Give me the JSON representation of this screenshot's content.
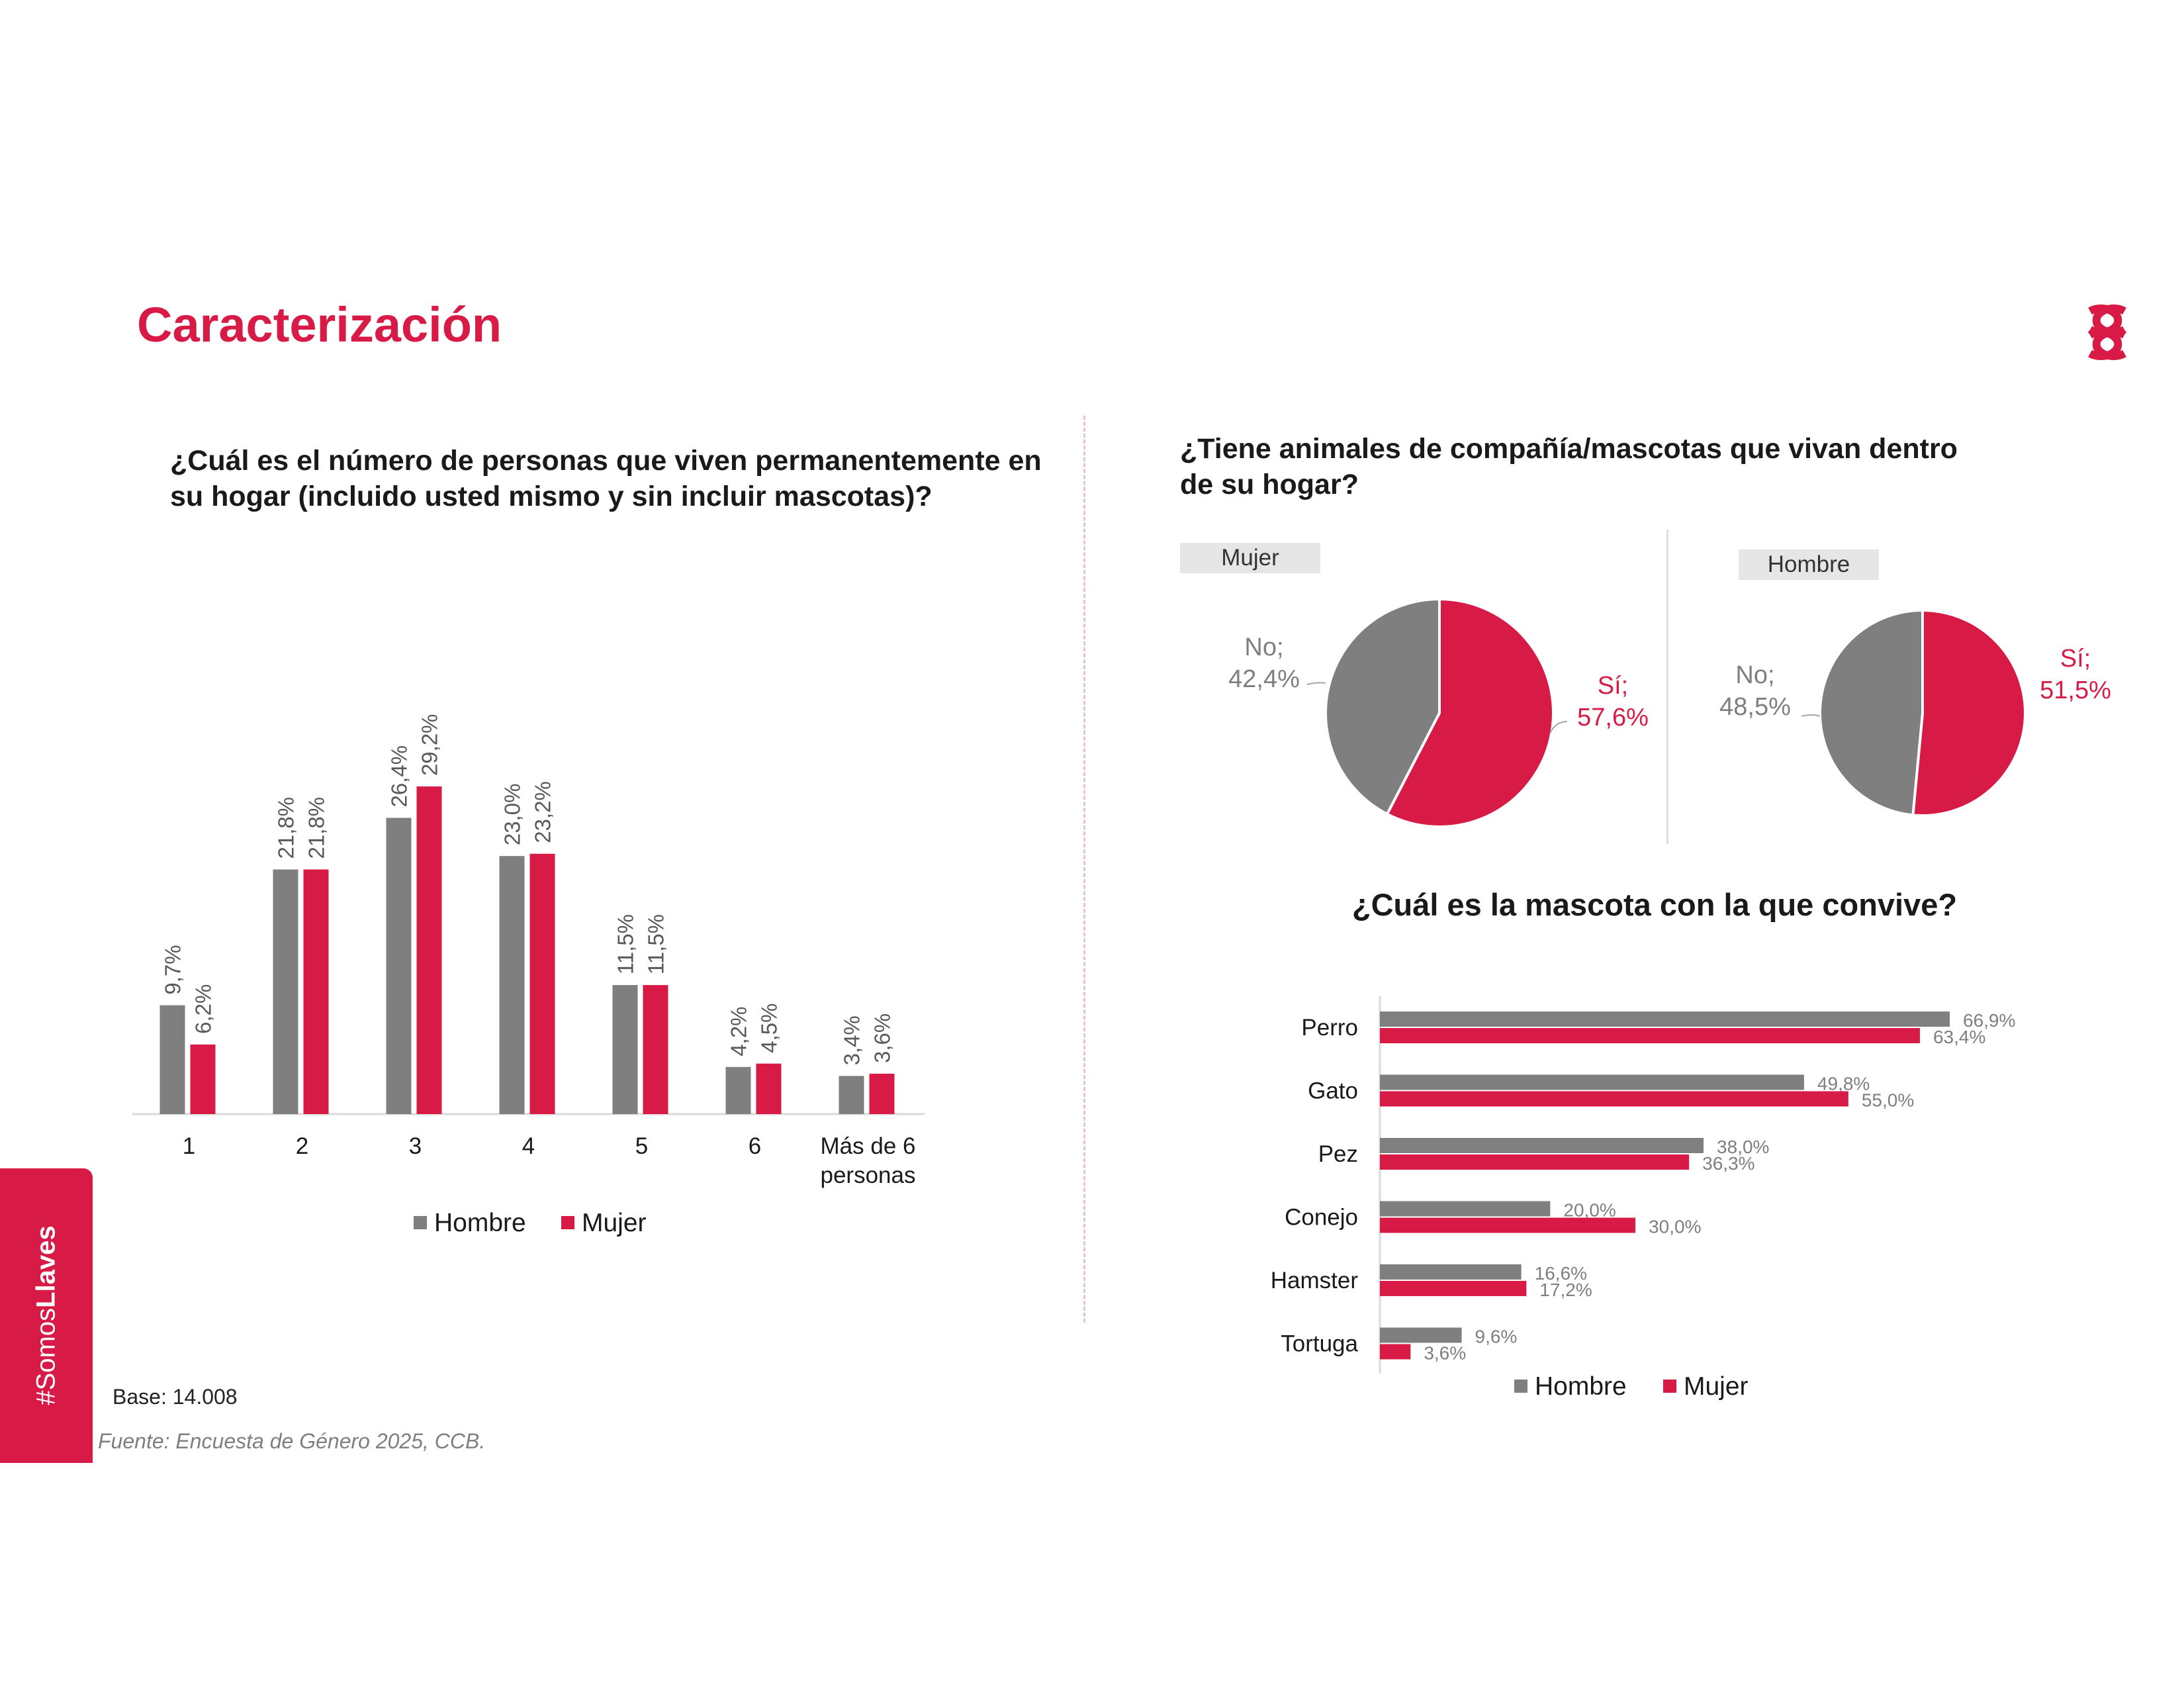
{
  "page": {
    "title": "Caracterización",
    "side_tab": {
      "prefix": "#Somos",
      "bold": "Llaves"
    },
    "base": "Base: 14.008",
    "source": "Fuente: Encuesta de Género 2025, CCB."
  },
  "colors": {
    "hombre": "#7f7f7f",
    "mujer": "#d81b46",
    "accent": "#d81b46"
  },
  "chart_data": [
    {
      "type": "bar",
      "title": "¿Cuál es el número de personas que viven permanentemente en su hogar (incluido usted mismo y sin incluir mascotas)?",
      "categories": [
        "1",
        "2",
        "3",
        "4",
        "5",
        "6",
        "Más de 6 personas"
      ],
      "series": [
        {
          "name": "Hombre",
          "values": [
            9.7,
            21.8,
            26.4,
            23.0,
            11.5,
            4.2,
            3.4
          ],
          "labels": [
            "9,7%",
            "21,8%",
            "26,4%",
            "23,0%",
            "11,5%",
            "4,2%",
            "3,4%"
          ]
        },
        {
          "name": "Mujer",
          "values": [
            6.2,
            21.8,
            29.2,
            23.2,
            11.5,
            4.5,
            3.6
          ],
          "labels": [
            "6,2%",
            "21,8%",
            "29,2%",
            "23,2%",
            "11,5%",
            "4,5%",
            "3,6%"
          ]
        }
      ],
      "legend": "bottom"
    },
    {
      "type": "pie",
      "title": "¿Tiene animales de compañía/mascotas que vivan dentro de su hogar?",
      "panels": [
        {
          "name": "Mujer",
          "slices": [
            {
              "label": "Sí;",
              "value": 57.6,
              "value_label": "57,6%",
              "color": "#d81b46"
            },
            {
              "label": "No;",
              "value": 42.4,
              "value_label": "42,4%",
              "color": "#7f7f7f"
            }
          ]
        },
        {
          "name": "Hombre",
          "slices": [
            {
              "label": "Sí;",
              "value": 51.5,
              "value_label": "51,5%",
              "color": "#d81b46"
            },
            {
              "label": "No;",
              "value": 48.5,
              "value_label": "48,5%",
              "color": "#7f7f7f"
            }
          ]
        }
      ]
    },
    {
      "type": "bar",
      "orientation": "horizontal",
      "title": "¿Cuál es la mascota con la que convive?",
      "categories": [
        "Perro",
        "Gato",
        "Pez",
        "Conejo",
        "Hamster",
        "Tortuga"
      ],
      "series": [
        {
          "name": "Hombre",
          "values": [
            66.9,
            49.8,
            38.0,
            20.0,
            16.6,
            9.6
          ],
          "labels": [
            "66,9%",
            "49,8%",
            "38,0%",
            "20,0%",
            "16,6%",
            "9,6%"
          ]
        },
        {
          "name": "Mujer",
          "values": [
            63.4,
            55.0,
            36.3,
            30.0,
            17.2,
            3.6
          ],
          "labels": [
            "63,4%",
            "55,0%",
            "36,3%",
            "30,0%",
            "17,2%",
            "3,6%"
          ]
        }
      ],
      "legend": "bottom"
    }
  ]
}
